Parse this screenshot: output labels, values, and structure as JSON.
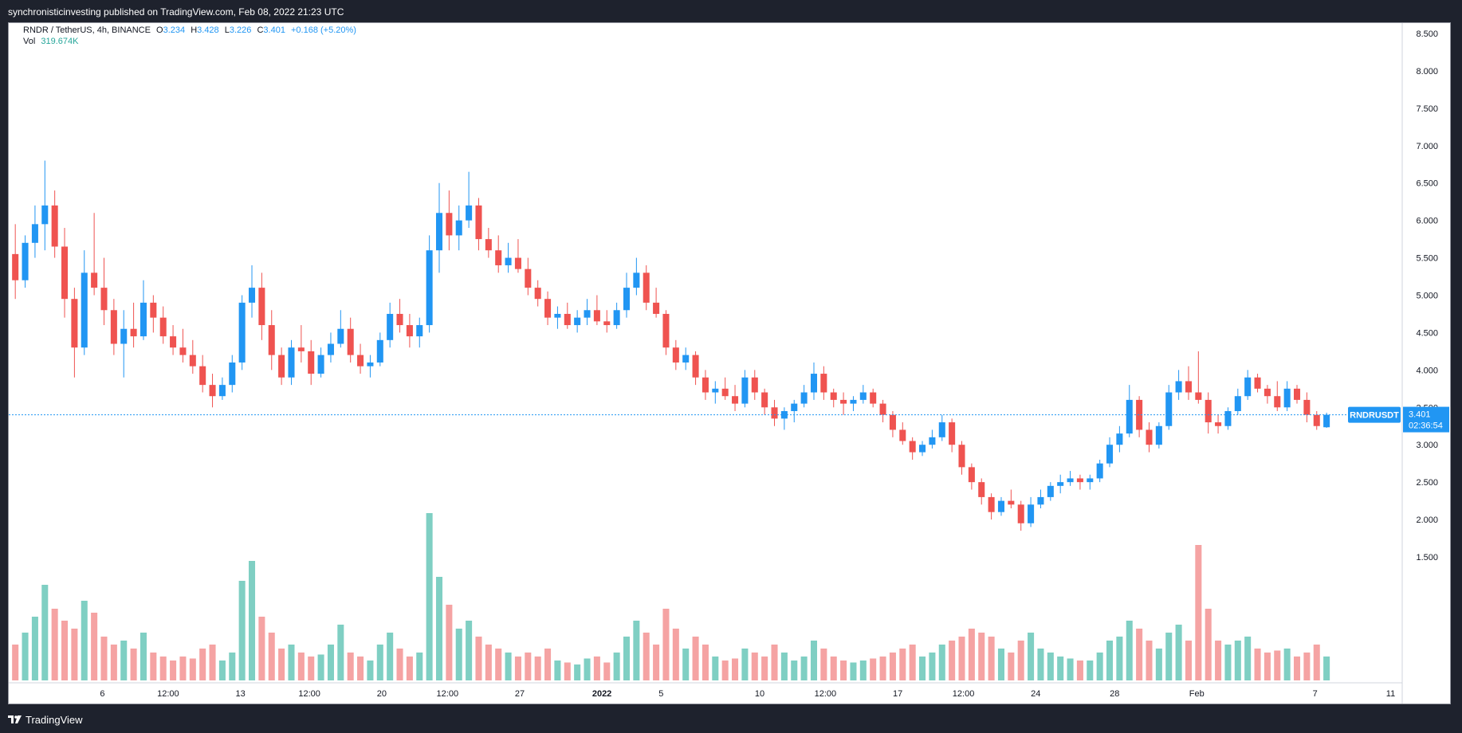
{
  "header": {
    "published_text": "synchronisticinvesting published on TradingView.com, Feb 08, 2022 21:23 UTC"
  },
  "footer": {
    "brand_label": "TradingView",
    "logo_icon": "tradingview-logo-icon"
  },
  "legend": {
    "symbol_line": "RNDR / TetherUS, 4h, BINANCE",
    "open_label": "O",
    "open_value": "3.234",
    "high_label": "H",
    "high_value": "3.428",
    "low_label": "L",
    "low_value": "3.226",
    "close_label": "C",
    "close_value": "3.401",
    "change_value": "+0.168 (+5.20%)",
    "vol_label": "Vol",
    "vol_value": "319.674K"
  },
  "price_tag": {
    "symbol": "RNDRUSDT",
    "price": "3.401",
    "countdown": "02:36:54"
  },
  "colors": {
    "up": "#2196f3",
    "down": "#ef5350",
    "vol_up": "#7fcfc3",
    "vol_down": "#f5a3a3",
    "price_tag": "#2196f3"
  },
  "chart_data": {
    "type": "candlestick",
    "y_axis": {
      "min": 1.5,
      "max": 8.5,
      "ticks": [
        "8.500",
        "8.000",
        "7.500",
        "7.000",
        "6.500",
        "6.000",
        "5.500",
        "5.000",
        "4.500",
        "4.000",
        "3.500",
        "3.000",
        "2.500",
        "2.000",
        "1.500"
      ]
    },
    "x_axis": {
      "ticks": [
        {
          "label": "6",
          "bar": 28
        },
        {
          "label": "12:00",
          "bar": 48
        },
        {
          "label": "13",
          "bar": 70
        },
        {
          "label": "12:00",
          "bar": 91
        },
        {
          "label": "20",
          "bar": 113
        },
        {
          "label": "12:00",
          "bar": 133
        },
        {
          "label": "27",
          "bar": 155
        },
        {
          "label": "2022",
          "bar": 180
        },
        {
          "label": "5",
          "bar": 198
        },
        {
          "label": "10",
          "bar": 228
        },
        {
          "label": "12:00",
          "bar": 248
        },
        {
          "label": "17",
          "bar": 270
        },
        {
          "label": "12:00",
          "bar": 290
        },
        {
          "label": "24",
          "bar": 312
        },
        {
          "label": "28",
          "bar": 336
        },
        {
          "label": "Feb",
          "bar": 361
        },
        {
          "label": "7",
          "bar": 397
        },
        {
          "label": "11",
          "bar": 420
        }
      ]
    },
    "last_price": 3.401,
    "bars_per_view": 424,
    "candles": [
      [
        5.55,
        5.95,
        4.95,
        5.2,
        90
      ],
      [
        5.2,
        5.8,
        5.1,
        5.7,
        120
      ],
      [
        5.7,
        6.2,
        5.5,
        5.95,
        160
      ],
      [
        5.95,
        6.8,
        5.6,
        6.2,
        240
      ],
      [
        6.2,
        6.4,
        5.5,
        5.65,
        180
      ],
      [
        5.65,
        5.9,
        4.7,
        4.95,
        150
      ],
      [
        4.95,
        5.1,
        3.9,
        4.3,
        130
      ],
      [
        4.3,
        5.6,
        4.2,
        5.3,
        200
      ],
      [
        5.3,
        6.1,
        5.0,
        5.1,
        170
      ],
      [
        5.1,
        5.5,
        4.6,
        4.8,
        110
      ],
      [
        4.8,
        4.95,
        4.2,
        4.35,
        90
      ],
      [
        4.35,
        4.8,
        3.9,
        4.55,
        100
      ],
      [
        4.55,
        4.9,
        4.3,
        4.45,
        80
      ],
      [
        4.45,
        5.2,
        4.4,
        4.9,
        120
      ],
      [
        4.9,
        5.0,
        4.5,
        4.7,
        70
      ],
      [
        4.7,
        4.85,
        4.35,
        4.45,
        60
      ],
      [
        4.45,
        4.6,
        4.2,
        4.3,
        50
      ],
      [
        4.3,
        4.55,
        4.1,
        4.2,
        60
      ],
      [
        4.2,
        4.4,
        3.95,
        4.05,
        55
      ],
      [
        4.05,
        4.2,
        3.7,
        3.8,
        80
      ],
      [
        3.8,
        3.95,
        3.5,
        3.65,
        90
      ],
      [
        3.65,
        3.9,
        3.6,
        3.8,
        50
      ],
      [
        3.8,
        4.2,
        3.7,
        4.1,
        70
      ],
      [
        4.1,
        5.0,
        4.0,
        4.9,
        250
      ],
      [
        4.9,
        5.4,
        4.7,
        5.1,
        300
      ],
      [
        5.1,
        5.3,
        4.4,
        4.6,
        160
      ],
      [
        4.6,
        4.8,
        4.0,
        4.2,
        120
      ],
      [
        4.2,
        4.3,
        3.8,
        3.9,
        80
      ],
      [
        3.9,
        4.4,
        3.8,
        4.3,
        90
      ],
      [
        4.3,
        4.6,
        4.1,
        4.25,
        70
      ],
      [
        4.25,
        4.4,
        3.8,
        3.95,
        60
      ],
      [
        3.95,
        4.3,
        3.9,
        4.2,
        65
      ],
      [
        4.2,
        4.5,
        4.1,
        4.35,
        90
      ],
      [
        4.35,
        4.8,
        4.3,
        4.55,
        140
      ],
      [
        4.55,
        4.7,
        4.1,
        4.2,
        70
      ],
      [
        4.2,
        4.35,
        3.95,
        4.05,
        60
      ],
      [
        4.05,
        4.2,
        3.9,
        4.1,
        50
      ],
      [
        4.1,
        4.5,
        4.05,
        4.4,
        90
      ],
      [
        4.4,
        4.9,
        4.3,
        4.75,
        120
      ],
      [
        4.75,
        4.95,
        4.5,
        4.6,
        80
      ],
      [
        4.6,
        4.75,
        4.3,
        4.45,
        60
      ],
      [
        4.45,
        4.7,
        4.3,
        4.6,
        70
      ],
      [
        4.6,
        5.8,
        4.5,
        5.6,
        420
      ],
      [
        5.6,
        6.5,
        5.3,
        6.1,
        260
      ],
      [
        6.1,
        6.4,
        5.6,
        5.8,
        190
      ],
      [
        5.8,
        6.2,
        5.6,
        6.0,
        130
      ],
      [
        6.0,
        6.65,
        5.9,
        6.2,
        150
      ],
      [
        6.2,
        6.3,
        5.6,
        5.75,
        110
      ],
      [
        5.75,
        5.9,
        5.5,
        5.6,
        90
      ],
      [
        5.6,
        5.8,
        5.3,
        5.4,
        80
      ],
      [
        5.4,
        5.7,
        5.3,
        5.5,
        70
      ],
      [
        5.5,
        5.75,
        5.3,
        5.35,
        60
      ],
      [
        5.35,
        5.5,
        5.0,
        5.1,
        70
      ],
      [
        5.1,
        5.2,
        4.85,
        4.95,
        60
      ],
      [
        4.95,
        5.05,
        4.6,
        4.7,
        80
      ],
      [
        4.7,
        4.85,
        4.55,
        4.75,
        50
      ],
      [
        4.75,
        4.9,
        4.55,
        4.6,
        45
      ],
      [
        4.6,
        4.8,
        4.5,
        4.7,
        40
      ],
      [
        4.7,
        4.95,
        4.6,
        4.8,
        55
      ],
      [
        4.8,
        5.0,
        4.6,
        4.65,
        60
      ],
      [
        4.65,
        4.8,
        4.5,
        4.6,
        45
      ],
      [
        4.6,
        4.9,
        4.55,
        4.8,
        70
      ],
      [
        4.8,
        5.3,
        4.7,
        5.1,
        110
      ],
      [
        5.1,
        5.5,
        5.0,
        5.3,
        150
      ],
      [
        5.3,
        5.4,
        4.8,
        4.9,
        120
      ],
      [
        4.9,
        5.1,
        4.7,
        4.75,
        90
      ],
      [
        4.75,
        4.8,
        4.2,
        4.3,
        180
      ],
      [
        4.3,
        4.4,
        4.0,
        4.1,
        130
      ],
      [
        4.1,
        4.3,
        4.0,
        4.2,
        80
      ],
      [
        4.2,
        4.25,
        3.8,
        3.9,
        110
      ],
      [
        3.9,
        4.0,
        3.6,
        3.7,
        90
      ],
      [
        3.7,
        3.85,
        3.55,
        3.75,
        60
      ],
      [
        3.75,
        3.9,
        3.6,
        3.65,
        50
      ],
      [
        3.65,
        3.8,
        3.45,
        3.55,
        55
      ],
      [
        3.55,
        4.0,
        3.5,
        3.9,
        80
      ],
      [
        3.9,
        4.0,
        3.6,
        3.7,
        70
      ],
      [
        3.7,
        3.75,
        3.4,
        3.5,
        60
      ],
      [
        3.5,
        3.6,
        3.25,
        3.35,
        90
      ],
      [
        3.35,
        3.5,
        3.2,
        3.45,
        70
      ],
      [
        3.45,
        3.6,
        3.3,
        3.55,
        50
      ],
      [
        3.55,
        3.8,
        3.5,
        3.7,
        60
      ],
      [
        3.7,
        4.1,
        3.6,
        3.95,
        100
      ],
      [
        3.95,
        4.05,
        3.6,
        3.7,
        80
      ],
      [
        3.7,
        3.75,
        3.5,
        3.6,
        60
      ],
      [
        3.6,
        3.7,
        3.4,
        3.55,
        50
      ],
      [
        3.55,
        3.65,
        3.45,
        3.6,
        45
      ],
      [
        3.6,
        3.8,
        3.55,
        3.7,
        50
      ],
      [
        3.7,
        3.75,
        3.5,
        3.55,
        55
      ],
      [
        3.55,
        3.6,
        3.3,
        3.4,
        60
      ],
      [
        3.4,
        3.45,
        3.1,
        3.2,
        70
      ],
      [
        3.2,
        3.3,
        3.0,
        3.05,
        80
      ],
      [
        3.05,
        3.1,
        2.8,
        2.9,
        90
      ],
      [
        2.9,
        3.05,
        2.85,
        3.0,
        60
      ],
      [
        3.0,
        3.2,
        2.95,
        3.1,
        70
      ],
      [
        3.1,
        3.4,
        3.05,
        3.3,
        90
      ],
      [
        3.3,
        3.35,
        2.9,
        3.0,
        100
      ],
      [
        3.0,
        3.05,
        2.6,
        2.7,
        110
      ],
      [
        2.7,
        2.75,
        2.4,
        2.5,
        130
      ],
      [
        2.5,
        2.55,
        2.2,
        2.3,
        120
      ],
      [
        2.3,
        2.35,
        2.0,
        2.1,
        110
      ],
      [
        2.1,
        2.3,
        2.05,
        2.25,
        80
      ],
      [
        2.25,
        2.4,
        2.15,
        2.2,
        70
      ],
      [
        2.2,
        2.25,
        1.85,
        1.95,
        100
      ],
      [
        1.95,
        2.3,
        1.9,
        2.2,
        120
      ],
      [
        2.2,
        2.4,
        2.15,
        2.3,
        80
      ],
      [
        2.3,
        2.5,
        2.25,
        2.45,
        70
      ],
      [
        2.45,
        2.6,
        2.35,
        2.5,
        60
      ],
      [
        2.5,
        2.65,
        2.45,
        2.55,
        55
      ],
      [
        2.55,
        2.6,
        2.4,
        2.5,
        50
      ],
      [
        2.5,
        2.6,
        2.4,
        2.55,
        50
      ],
      [
        2.55,
        2.8,
        2.5,
        2.75,
        70
      ],
      [
        2.75,
        3.1,
        2.7,
        3.0,
        100
      ],
      [
        3.0,
        3.25,
        2.9,
        3.15,
        110
      ],
      [
        3.15,
        3.8,
        3.1,
        3.6,
        150
      ],
      [
        3.6,
        3.65,
        3.1,
        3.2,
        130
      ],
      [
        3.2,
        3.3,
        2.9,
        3.0,
        100
      ],
      [
        3.0,
        3.3,
        2.95,
        3.25,
        80
      ],
      [
        3.25,
        3.8,
        3.2,
        3.7,
        120
      ],
      [
        3.7,
        4.0,
        3.6,
        3.85,
        140
      ],
      [
        3.85,
        4.05,
        3.6,
        3.7,
        100
      ],
      [
        3.7,
        4.25,
        3.55,
        3.6,
        340
      ],
      [
        3.6,
        3.7,
        3.15,
        3.3,
        180
      ],
      [
        3.3,
        3.4,
        3.15,
        3.25,
        100
      ],
      [
        3.25,
        3.5,
        3.2,
        3.45,
        90
      ],
      [
        3.45,
        3.75,
        3.4,
        3.65,
        100
      ],
      [
        3.65,
        4.0,
        3.6,
        3.9,
        110
      ],
      [
        3.9,
        3.95,
        3.7,
        3.75,
        80
      ],
      [
        3.75,
        3.8,
        3.55,
        3.65,
        70
      ],
      [
        3.65,
        3.85,
        3.45,
        3.5,
        75
      ],
      [
        3.5,
        3.85,
        3.45,
        3.75,
        80
      ],
      [
        3.75,
        3.8,
        3.55,
        3.6,
        60
      ],
      [
        3.6,
        3.7,
        3.3,
        3.4,
        70
      ],
      [
        3.4,
        3.45,
        3.2,
        3.25,
        90
      ],
      [
        3.234,
        3.428,
        3.226,
        3.401,
        60
      ]
    ]
  }
}
